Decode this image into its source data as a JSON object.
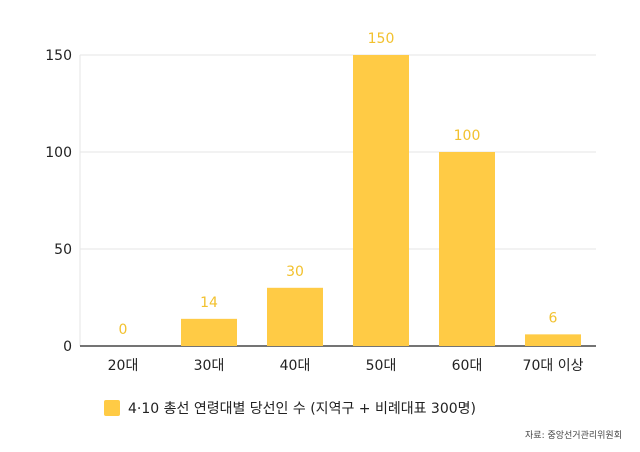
{
  "colors": {
    "bar": "#FFCB45",
    "value_label": "#F2C12E",
    "grid": "#E6E6E6",
    "axis": "#222222"
  },
  "chart_data": {
    "type": "bar",
    "categories": [
      "20대",
      "30대",
      "40대",
      "50대",
      "60대",
      "70대 이상"
    ],
    "series": [
      {
        "name": "4·10 총선 연령대별 당선인 수 (지역구 + 비례대표 300명)",
        "values": [
          0,
          14,
          30,
          150,
          100,
          6
        ]
      }
    ],
    "value_labels": [
      "0",
      "14",
      "30",
      "150",
      "100",
      "6"
    ],
    "yticks": [
      0,
      50,
      100,
      150
    ],
    "ylim": [
      0,
      150
    ],
    "grid": true,
    "legend_position": "bottom-left",
    "source": "자료: 중앙선거관리위원회"
  }
}
